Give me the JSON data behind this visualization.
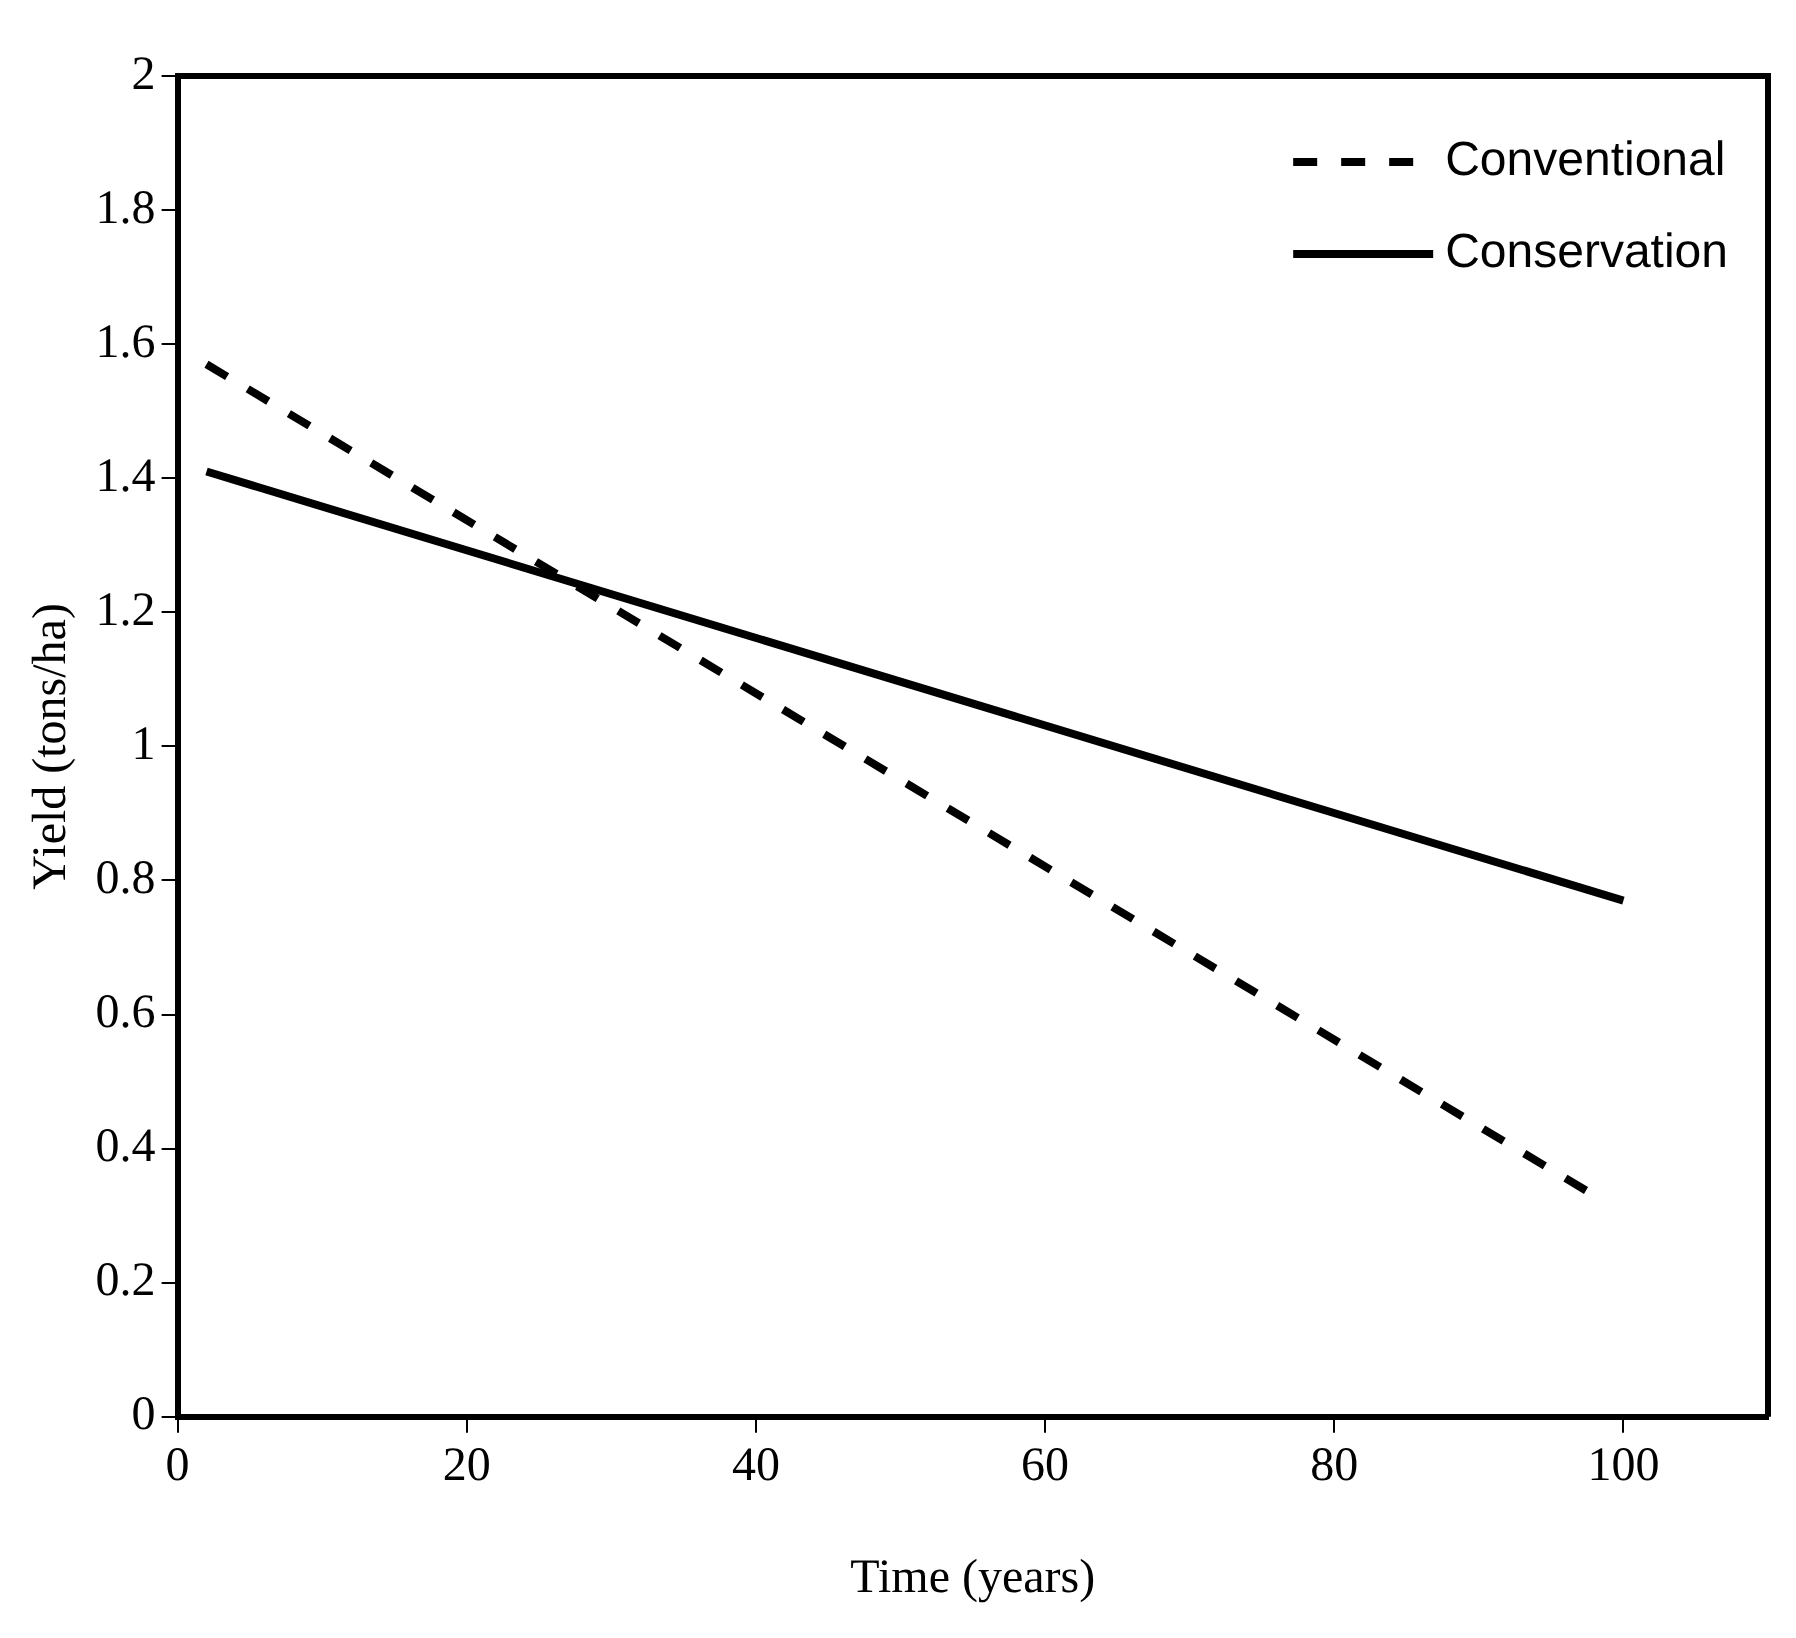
{
  "chart_data": {
    "type": "line",
    "xlabel": "Time (years)",
    "ylabel": "Yield (tons/ha)",
    "xlim": [
      0,
      110
    ],
    "xticks": [
      0,
      20,
      40,
      60,
      80,
      100
    ],
    "ylim": [
      0,
      2
    ],
    "yticks": [
      0,
      0.2,
      0.4,
      0.6,
      0.8,
      1,
      1.2,
      1.4,
      1.6,
      1.8,
      2
    ],
    "grid": false,
    "legend": "top right",
    "marker": "none",
    "series": [
      {
        "name": "Conventional",
        "color": "#000000",
        "line_style": "dashed",
        "x": [
          2,
          98
        ],
        "values": [
          1.57,
          0.33
        ]
      },
      {
        "name": "Conservation",
        "color": "#000000",
        "line_style": "solid",
        "x": [
          2,
          100
        ],
        "values": [
          1.41,
          0.77
        ]
      }
    ]
  }
}
